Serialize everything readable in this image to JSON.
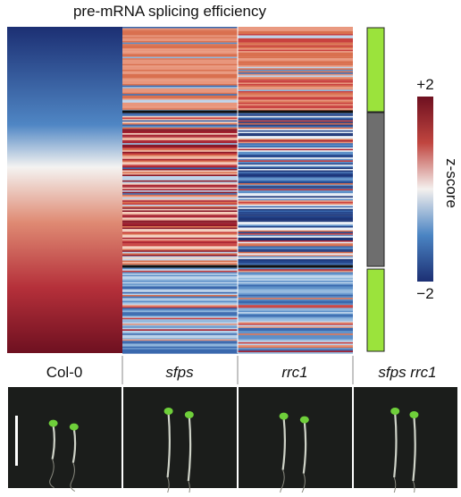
{
  "title": "pre-mRNA splicing efficiency",
  "columns": [
    "Col-0",
    "sfps",
    "rrc1",
    "sfps rrc1"
  ],
  "colorbar": {
    "label": "z-score",
    "top": "+2",
    "bottom": "−2"
  }
}
